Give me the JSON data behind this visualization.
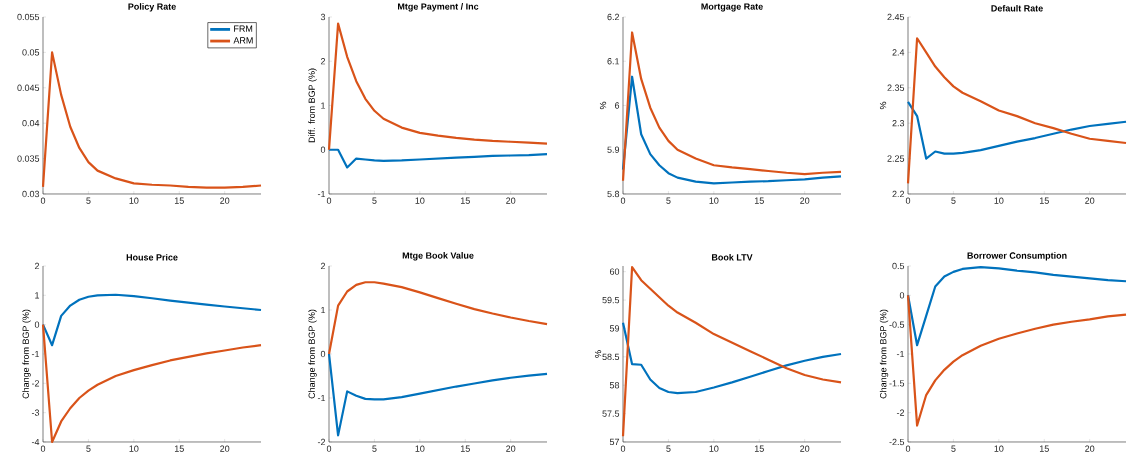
{
  "chart_data": [
    {
      "type": "line",
      "title": "Policy Rate",
      "x": [
        0,
        1,
        2,
        3,
        4,
        5,
        6,
        8,
        10,
        12,
        14,
        16,
        18,
        20,
        22,
        24
      ],
      "xlim": [
        0,
        24
      ],
      "xticks": [
        0,
        5,
        10,
        15,
        20
      ],
      "ylim": [
        0.03,
        0.055
      ],
      "yticks": [
        0.03,
        0.035,
        0.04,
        0.045,
        0.05,
        0.055
      ],
      "legend": "top right",
      "series": [
        {
          "name": "FRM",
          "color": "#0072bd",
          "values": [
            null,
            null,
            null,
            null,
            null,
            null,
            null,
            null,
            null,
            null,
            null,
            null,
            null,
            null,
            null,
            null
          ]
        },
        {
          "name": "ARM",
          "color": "#d95319",
          "values": [
            0.031,
            0.05,
            0.044,
            0.0395,
            0.0365,
            0.0345,
            0.0333,
            0.0322,
            0.0315,
            0.0313,
            0.0312,
            0.031,
            0.0309,
            0.0309,
            0.031,
            0.0312
          ]
        }
      ]
    },
    {
      "type": "line",
      "title": "Mtge Payment / Inc",
      "ylabel": "Diff. from BGP (%)",
      "x": [
        0,
        1,
        2,
        3,
        4,
        5,
        6,
        8,
        10,
        12,
        14,
        16,
        18,
        20,
        22,
        24
      ],
      "xlim": [
        0,
        24
      ],
      "xticks": [
        0,
        5,
        10,
        15,
        20
      ],
      "ylim": [
        -1,
        3
      ],
      "yticks": [
        -1,
        0,
        1,
        2,
        3
      ],
      "series": [
        {
          "color": "#0072bd",
          "values": [
            0,
            0,
            -0.4,
            -0.2,
            -0.22,
            -0.24,
            -0.25,
            -0.24,
            -0.22,
            -0.2,
            -0.18,
            -0.16,
            -0.14,
            -0.13,
            -0.12,
            -0.1
          ]
        },
        {
          "color": "#d95319",
          "values": [
            0,
            2.85,
            2.1,
            1.55,
            1.15,
            0.88,
            0.7,
            0.5,
            0.38,
            0.32,
            0.27,
            0.23,
            0.2,
            0.18,
            0.16,
            0.14
          ]
        }
      ]
    },
    {
      "type": "line",
      "title": "Mortgage Rate",
      "ylabel": "%",
      "x": [
        0,
        1,
        2,
        3,
        4,
        5,
        6,
        8,
        10,
        12,
        14,
        16,
        18,
        20,
        22,
        24
      ],
      "xlim": [
        0,
        24
      ],
      "xticks": [
        0,
        5,
        10,
        15,
        20
      ],
      "ylim": [
        5.8,
        6.2
      ],
      "yticks": [
        5.8,
        5.9,
        6,
        6.1,
        6.2
      ],
      "series": [
        {
          "color": "#0072bd",
          "values": [
            5.855,
            6.065,
            5.935,
            5.89,
            5.865,
            5.847,
            5.837,
            5.828,
            5.824,
            5.826,
            5.828,
            5.829,
            5.831,
            5.833,
            5.837,
            5.84
          ]
        },
        {
          "color": "#d95319",
          "values": [
            5.83,
            6.165,
            6.06,
            5.995,
            5.95,
            5.92,
            5.9,
            5.88,
            5.865,
            5.86,
            5.856,
            5.852,
            5.848,
            5.845,
            5.848,
            5.85
          ]
        }
      ]
    },
    {
      "type": "line",
      "title": "Default Rate",
      "ylabel": "%",
      "x": [
        0,
        1,
        2,
        3,
        4,
        5,
        6,
        8,
        10,
        12,
        14,
        16,
        18,
        20,
        22,
        24
      ],
      "xlim": [
        0,
        24
      ],
      "xticks": [
        0,
        5,
        10,
        15,
        20
      ],
      "ylim": [
        2.2,
        2.45
      ],
      "yticks": [
        2.2,
        2.25,
        2.3,
        2.35,
        2.4,
        2.45
      ],
      "series": [
        {
          "color": "#0072bd",
          "values": [
            2.33,
            2.31,
            2.25,
            2.26,
            2.257,
            2.257,
            2.258,
            2.262,
            2.268,
            2.274,
            2.279,
            2.285,
            2.291,
            2.296,
            2.299,
            2.302
          ]
        },
        {
          "color": "#d95319",
          "values": [
            2.215,
            2.42,
            2.4,
            2.38,
            2.365,
            2.352,
            2.343,
            2.331,
            2.318,
            2.31,
            2.3,
            2.293,
            2.285,
            2.278,
            2.275,
            2.272
          ]
        }
      ]
    },
    {
      "type": "line",
      "title": "House Price",
      "ylabel": "Change from BGP (%)",
      "x": [
        0,
        1,
        2,
        3,
        4,
        5,
        6,
        8,
        10,
        12,
        14,
        16,
        18,
        20,
        22,
        24
      ],
      "xlim": [
        0,
        24
      ],
      "xticks": [
        0,
        5,
        10,
        15,
        20
      ],
      "ylim": [
        -4,
        2
      ],
      "yticks": [
        -4,
        -3,
        -2,
        -1,
        0,
        1,
        2
      ],
      "series": [
        {
          "color": "#0072bd",
          "values": [
            0,
            -0.7,
            0.3,
            0.65,
            0.85,
            0.95,
            1.0,
            1.02,
            0.97,
            0.9,
            0.82,
            0.75,
            0.68,
            0.62,
            0.56,
            0.5
          ]
        },
        {
          "color": "#d95319",
          "values": [
            0,
            -4.0,
            -3.3,
            -2.85,
            -2.5,
            -2.25,
            -2.05,
            -1.75,
            -1.55,
            -1.38,
            -1.22,
            -1.1,
            -0.98,
            -0.88,
            -0.78,
            -0.7
          ]
        }
      ]
    },
    {
      "type": "line",
      "title": "Mtge Book Value",
      "ylabel": "Change from BGP (%)",
      "x": [
        0,
        1,
        2,
        3,
        4,
        5,
        6,
        8,
        10,
        12,
        14,
        16,
        18,
        20,
        22,
        24
      ],
      "xlim": [
        0,
        24
      ],
      "xticks": [
        0,
        5,
        10,
        15,
        20
      ],
      "ylim": [
        -2,
        2
      ],
      "yticks": [
        -2,
        -1,
        0,
        1,
        2
      ],
      "series": [
        {
          "color": "#0072bd",
          "values": [
            0,
            -1.85,
            -0.85,
            -0.95,
            -1.02,
            -1.03,
            -1.03,
            -0.98,
            -0.9,
            -0.82,
            -0.74,
            -0.67,
            -0.6,
            -0.54,
            -0.49,
            -0.45
          ]
        },
        {
          "color": "#d95319",
          "values": [
            0,
            1.1,
            1.42,
            1.57,
            1.63,
            1.63,
            1.6,
            1.52,
            1.4,
            1.27,
            1.14,
            1.02,
            0.92,
            0.83,
            0.75,
            0.68
          ]
        }
      ]
    },
    {
      "type": "line",
      "title": "Book LTV",
      "ylabel": "%",
      "x": [
        0,
        1,
        2,
        3,
        4,
        5,
        6,
        8,
        10,
        12,
        14,
        16,
        18,
        20,
        22,
        24
      ],
      "xlim": [
        0,
        24
      ],
      "xticks": [
        0,
        5,
        10,
        15,
        20
      ],
      "ylim": [
        57,
        60.1
      ],
      "yticks": [
        57,
        57.5,
        58,
        58.5,
        59,
        59.5,
        60
      ],
      "series": [
        {
          "color": "#0072bd",
          "values": [
            59.1,
            58.37,
            58.36,
            58.1,
            57.95,
            57.88,
            57.86,
            57.88,
            57.96,
            58.05,
            58.15,
            58.25,
            58.35,
            58.43,
            58.5,
            58.55
          ]
        },
        {
          "color": "#d95319",
          "values": [
            57.1,
            60.08,
            59.85,
            59.7,
            59.55,
            59.4,
            59.28,
            59.1,
            58.9,
            58.75,
            58.6,
            58.45,
            58.3,
            58.18,
            58.1,
            58.05
          ]
        }
      ]
    },
    {
      "type": "line",
      "title": "Borrower Consumption",
      "ylabel": "Change from BGP (%)",
      "x": [
        0,
        1,
        2,
        3,
        4,
        5,
        6,
        8,
        10,
        12,
        14,
        16,
        18,
        20,
        22,
        24
      ],
      "xlim": [
        0,
        24
      ],
      "xticks": [
        0,
        5,
        10,
        15,
        20
      ],
      "ylim": [
        -2.5,
        0.5
      ],
      "yticks": [
        -2.5,
        -2,
        -1.5,
        -1,
        -0.5,
        0,
        0.5
      ],
      "series": [
        {
          "color": "#0072bd",
          "values": [
            0,
            -0.85,
            -0.35,
            0.15,
            0.32,
            0.4,
            0.45,
            0.48,
            0.46,
            0.42,
            0.39,
            0.35,
            0.32,
            0.29,
            0.26,
            0.24
          ]
        },
        {
          "color": "#d95319",
          "values": [
            0,
            -2.22,
            -1.7,
            -1.45,
            -1.27,
            -1.13,
            -1.02,
            -0.86,
            -0.74,
            -0.65,
            -0.57,
            -0.5,
            -0.45,
            -0.41,
            -0.36,
            -0.33
          ]
        }
      ]
    }
  ]
}
